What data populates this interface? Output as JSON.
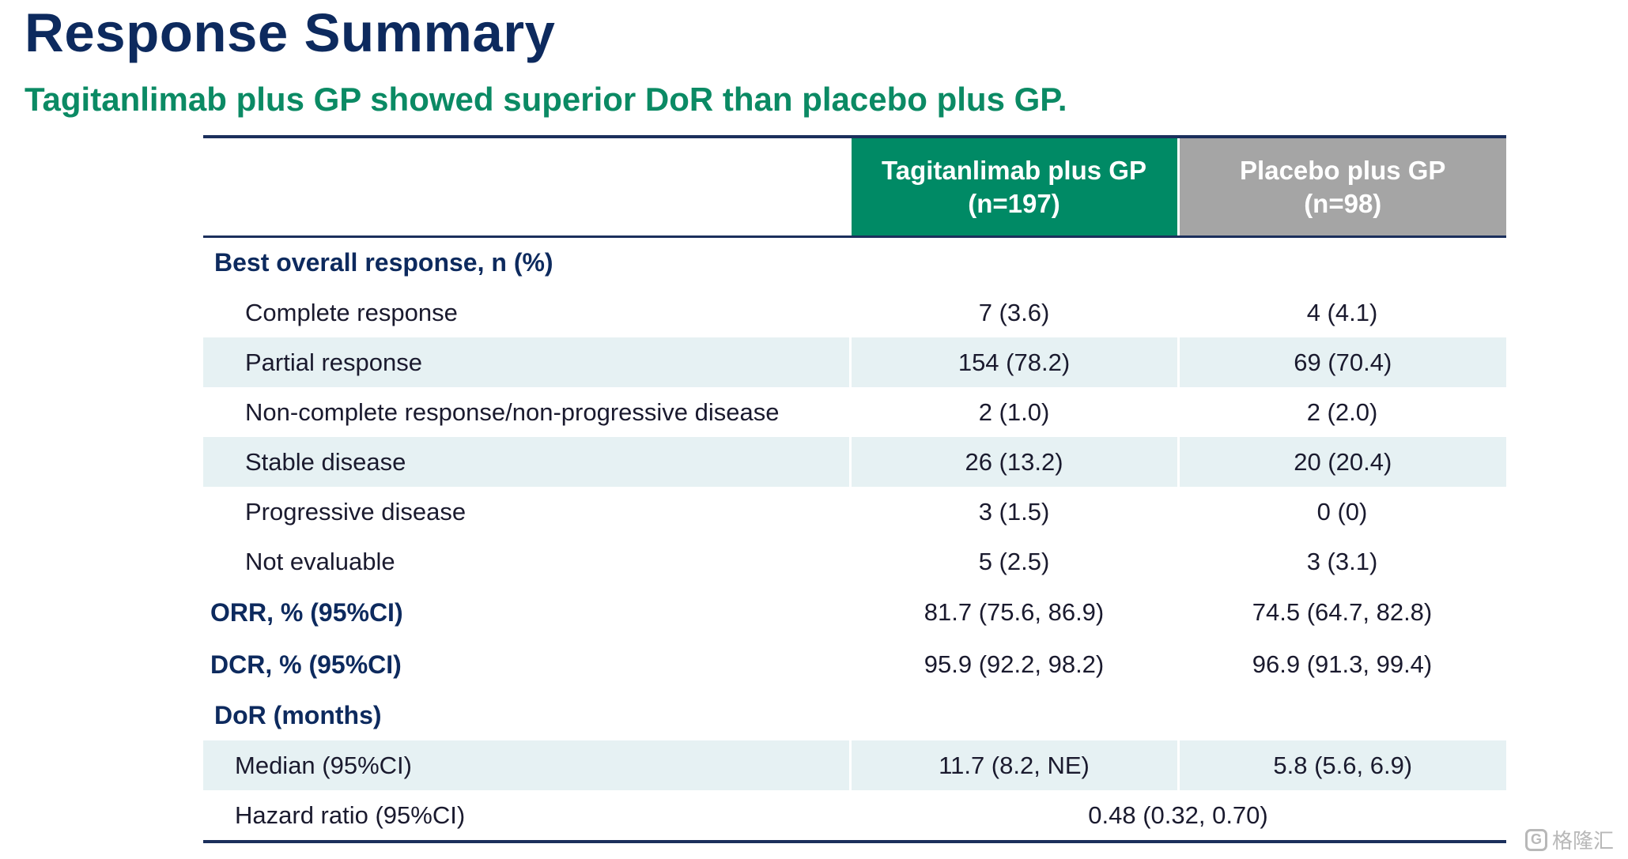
{
  "slide": {
    "title": "Response Summary",
    "subtitle": "Tagitanlimab plus GP showed superior DoR than placebo plus GP."
  },
  "table": {
    "columns": [
      {
        "line1": "Tagitanlimab plus GP",
        "line2": "(n=197)",
        "color": "#008a65"
      },
      {
        "line1": "Placebo plus GP",
        "line2": "(n=98)",
        "color": "#a5a5a5"
      }
    ],
    "best_overall_response": {
      "label": "Best overall response, n (%)",
      "rows": [
        {
          "label": "Complete response",
          "a": "7 (3.6)",
          "b": "4 (4.1)"
        },
        {
          "label": "Partial response",
          "a": "154 (78.2)",
          "b": "69 (70.4)"
        },
        {
          "label": "Non-complete response/non-progressive disease",
          "a": "2 (1.0)",
          "b": "2 (2.0)"
        },
        {
          "label": "Stable disease",
          "a": "26 (13.2)",
          "b": "20 (20.4)"
        },
        {
          "label": "Progressive disease",
          "a": "3 (1.5)",
          "b": "0 (0)"
        },
        {
          "label": "Not evaluable",
          "a": "5 (2.5)",
          "b": "3 (3.1)"
        }
      ]
    },
    "orr": {
      "label": "ORR, % (95%CI)",
      "a": "81.7 (75.6, 86.9)",
      "b": "74.5 (64.7, 82.8)"
    },
    "dcr": {
      "label": "DCR, % (95%CI)",
      "a": "95.9 (92.2, 98.2)",
      "b": "96.9 (91.3, 99.4)"
    },
    "dor": {
      "label": "DoR (months)",
      "median": {
        "label": "Median (95%CI)",
        "a": "11.7 (8.2, NE)",
        "b": "5.8 (5.6, 6.9)"
      },
      "hazard_ratio": {
        "label": "Hazard ratio (95%CI)",
        "value": "0.48 (0.32, 0.70)"
      }
    }
  },
  "watermark": {
    "icon": "G",
    "text": "格隆汇"
  }
}
